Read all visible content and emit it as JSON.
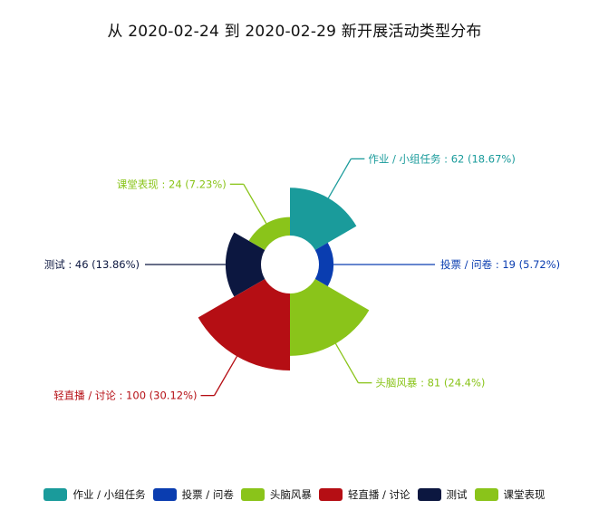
{
  "chart_data": {
    "type": "pie",
    "subtype": "nightingale-rose",
    "title": "从 2020-02-24 到 2020-02-29 新开展活动类型分布",
    "legend_position": "bottom",
    "label_separator": " : ",
    "slices": [
      {
        "name": "作业 / 小组任务",
        "value": 62,
        "percent": "18.67%",
        "color": "#1a9b9b"
      },
      {
        "name": "投票 / 问卷",
        "value": 19,
        "percent": "5.72%",
        "color": "#0a3db0"
      },
      {
        "name": "头脑风暴",
        "value": 81,
        "percent": "24.4%",
        "color": "#8ac41a"
      },
      {
        "name": "轻直播 / 讨论",
        "value": 100,
        "percent": "30.12%",
        "color": "#b50e14"
      },
      {
        "name": "测试",
        "value": 46,
        "percent": "13.86%",
        "color": "#0c1740"
      },
      {
        "name": "课堂表现",
        "value": 24,
        "percent": "7.23%",
        "color": "#8ac41a"
      }
    ]
  }
}
